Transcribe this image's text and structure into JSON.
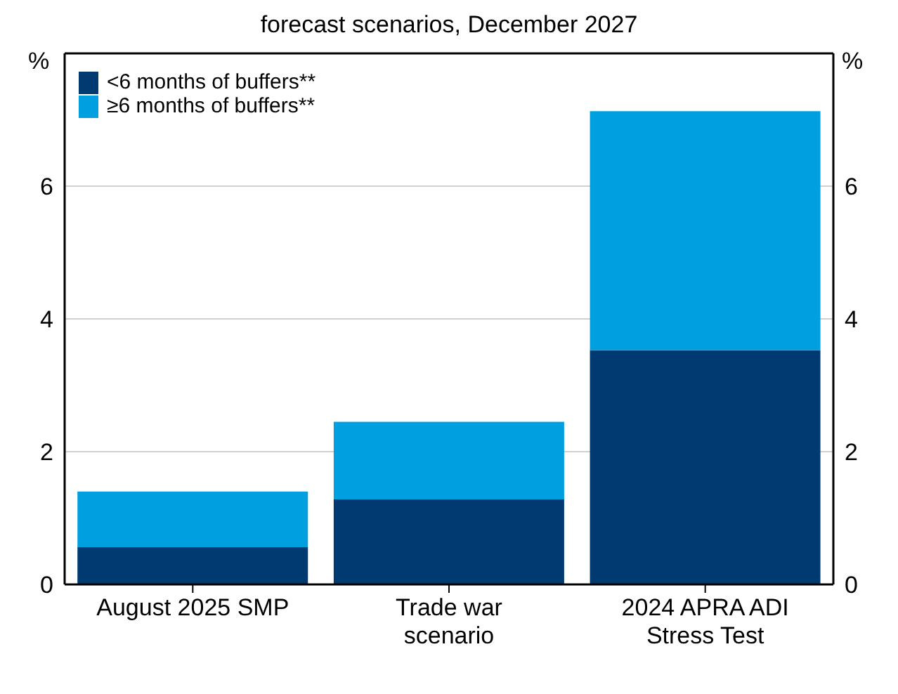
{
  "chart_data": {
    "type": "bar",
    "title": "forecast scenarios, December 2027",
    "categories": [
      "August 2025 SMP",
      "Trade war scenario",
      "2024 APRA ADI Stress Test"
    ],
    "series": [
      {
        "name": "<6 months of buffers**",
        "color": "#003a70",
        "values": [
          0.56,
          1.28,
          3.53
        ]
      },
      {
        "name": "≥6 months of buffers**",
        "color": "#00a0e0",
        "values": [
          0.84,
          1.17,
          3.6
        ]
      }
    ],
    "stacked": true,
    "ylabel": "%",
    "y2label": "%",
    "ylim": [
      0,
      8
    ],
    "yticks": [
      0,
      2,
      4,
      6
    ],
    "y2lim": [
      0,
      8
    ],
    "y2ticks": [
      0,
      2,
      4,
      6
    ],
    "grid": "y",
    "legend": "top left"
  }
}
